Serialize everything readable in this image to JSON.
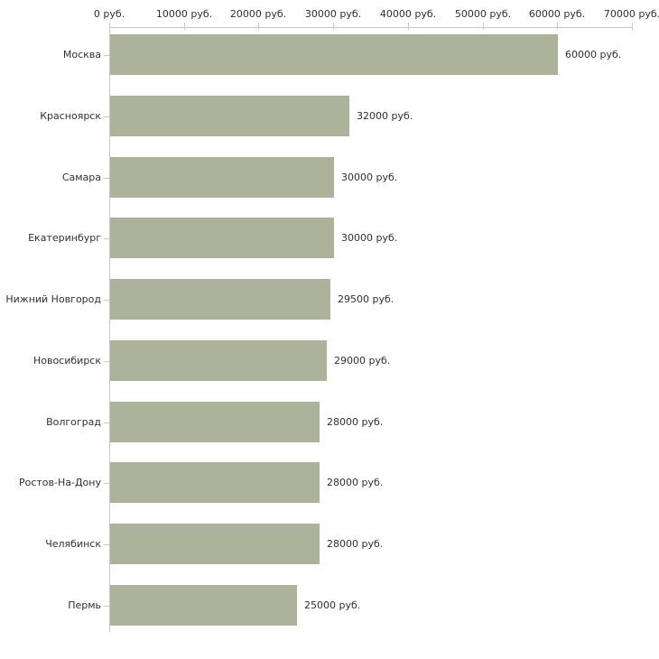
{
  "chart_data": {
    "type": "bar",
    "orientation": "horizontal",
    "title": "",
    "categories": [
      "Москва",
      "Красноярск",
      "Самара",
      "Екатеринбург",
      "Нижний Новгород",
      "Новосибирск",
      "Волгоград",
      "Ростов-На-Дону",
      "Челябинск",
      "Пермь"
    ],
    "values": [
      60000,
      32000,
      30000,
      30000,
      29500,
      29000,
      28000,
      28000,
      28000,
      25000
    ],
    "value_labels": [
      "60000 руб.",
      "32000 руб.",
      "30000 руб.",
      "30000 руб.",
      "29500 руб.",
      "29000 руб.",
      "28000 руб.",
      "28000 руб.",
      "28000 руб.",
      "25000 руб."
    ],
    "x_axis": {
      "position": "top",
      "min": 0,
      "max": 70000,
      "ticks": [
        0,
        10000,
        20000,
        30000,
        40000,
        50000,
        60000,
        70000
      ],
      "tick_labels": [
        "0 руб.",
        "10000 руб.",
        "20000 руб.",
        "30000 руб.",
        "40000 руб.",
        "50000 руб.",
        "60000 руб.",
        "70000 руб."
      ],
      "unit": "руб."
    },
    "legend": false,
    "grid": false,
    "colors": {
      "bar": "#adb39b",
      "axis_line": "#c8c8c8",
      "tick_mark": "#cfcfa3",
      "text": "#303030",
      "background": "#ffffff"
    }
  }
}
